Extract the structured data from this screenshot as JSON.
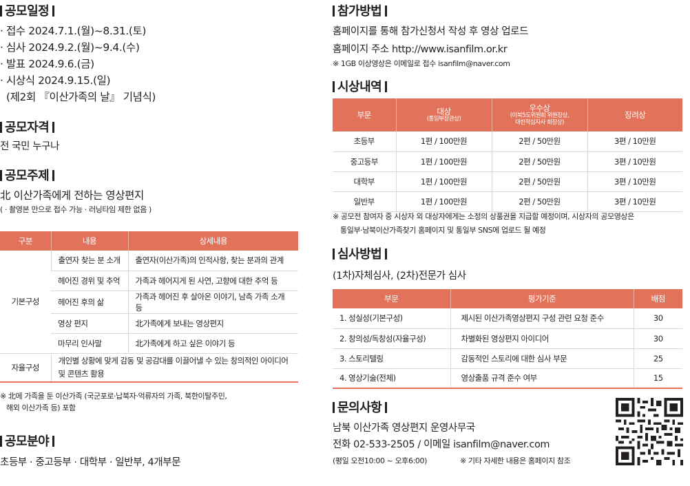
{
  "schedule": {
    "title": "공모일정",
    "items": [
      "· 접수 2024.7.1.(월)~8.31.(토)",
      "· 심사 2024.9.2.(월)~9.4.(수)",
      "· 발표 2024.9.6.(금)",
      "· 시상식 2024.9.15.(일)"
    ],
    "note": "(제2회 『이산가족의 날』 기념식)"
  },
  "qualification": {
    "title": "공모자격",
    "text": "전 국민 누구나"
  },
  "theme": {
    "title": "공모주제",
    "main": "北 이산가족에게 전하는 영상편지",
    "sub": "( · 촬영본 만으로 접수 가능 · 러닝타임 제한 없음 )",
    "table": {
      "headers": [
        "구분",
        "내용",
        "상세내용"
      ],
      "group1": "기본구성",
      "rows": [
        [
          "출연자 찾는 분 소개",
          "출연자(이산가족)의 인적사항, 찾는 분과의 관계"
        ],
        [
          "헤어진 경위 및 추억",
          "가족과 헤어지게 된 사연, 고향에 대한 추억 등"
        ],
        [
          "헤어진 후의 삶",
          "가족과 헤어진 후 살아온 이야기, 남측 가족 소개 등"
        ],
        [
          "영상 편지",
          "北가족에게 보내는 영상편지"
        ],
        [
          "마무리 인사말",
          "北가족에게 하고 싶은 이야기 등"
        ]
      ],
      "group2": "자율구성",
      "free": "개인별 상황에 맞게 감동 및 공감대를 이끌어낼 수 있는 창의적인 아이디어 및 콘텐츠 활용"
    },
    "note1": "※ 北에 가족을 둔 이산가족 (국군포로·납북자·억류자의 가족, 북한이탈주민,",
    "note2": "해외 이산가족 등) 포함"
  },
  "field": {
    "title": "공모분야",
    "text": "초등부 · 중고등부 · 대학부 · 일반부,  4개부문"
  },
  "participation": {
    "title": "참가방법",
    "line1": "홈페이지를 통해 참가신청서 작성 후 영상 업로드",
    "line2": "홈페이지 주소 http://www.isanfilm.or.kr",
    "note": "※ 1GB 이상영상은 이메일로 접수 isanfilm@naver.com"
  },
  "awards": {
    "title": "시상내역",
    "headers": {
      "division": "부문",
      "grand": "대상",
      "grand_sub": "(통일부장관상)",
      "excellence": "우수상",
      "excellence_sub1": "(이북5도위원회 위원장상,",
      "excellence_sub2": "대한적십자사 회장상)",
      "encourage": "장려상"
    },
    "rows": [
      [
        "초등부",
        "1편 / 100만원",
        "2편 / 50만원",
        "3편 / 10만원"
      ],
      [
        "중고등부",
        "1편 / 100만원",
        "2편 / 50만원",
        "3편 / 10만원"
      ],
      [
        "대학부",
        "1편 / 100만원",
        "2편 / 50만원",
        "3편 / 10만원"
      ],
      [
        "일반부",
        "1편 / 100만원",
        "2편 / 50만원",
        "3편 / 10만원"
      ]
    ],
    "note1": "※ 공모전 참여자 중 시상자 외 대상자에게는 소정의 상품권을 지급할 예정이며, 시상자의 공모영상은",
    "note2": "통일부·남북이산가족찾기 홈페이지 및 통일부 SNS에 업로드 될 예정"
  },
  "review": {
    "title": "심사방법",
    "text": "(1차)자체심사, (2차)전문가 심사",
    "headers": [
      "부문",
      "평가기준",
      "배점"
    ],
    "rows": [
      [
        "1. 성실성(기본구성)",
        "제시된 이산가족영상편지 구성 관련 요청 준수",
        "30"
      ],
      [
        "2. 창의성/독창성(자율구성)",
        "차별화된 영상편지 아이디어",
        "30"
      ],
      [
        "3. 스토리텔링",
        "감동적인 스토리에 대한 심사 부문",
        "25"
      ],
      [
        "4. 영상기술(전체)",
        "영상출품 규격 준수 여부",
        "15"
      ]
    ]
  },
  "contact": {
    "title": "문의사항",
    "office": "남북 이산가족 영상편지 운영사무국",
    "phone": "전화 02-533-2505  / 이메일 isanfilm@naver.com",
    "hours": "(평일 오전10:00 ~ 오후6:00)",
    "etc": "※ 기타 자세한 내용은 홈페이지 참조"
  },
  "colors": {
    "accent": "#e2735a",
    "text": "#231f20"
  }
}
